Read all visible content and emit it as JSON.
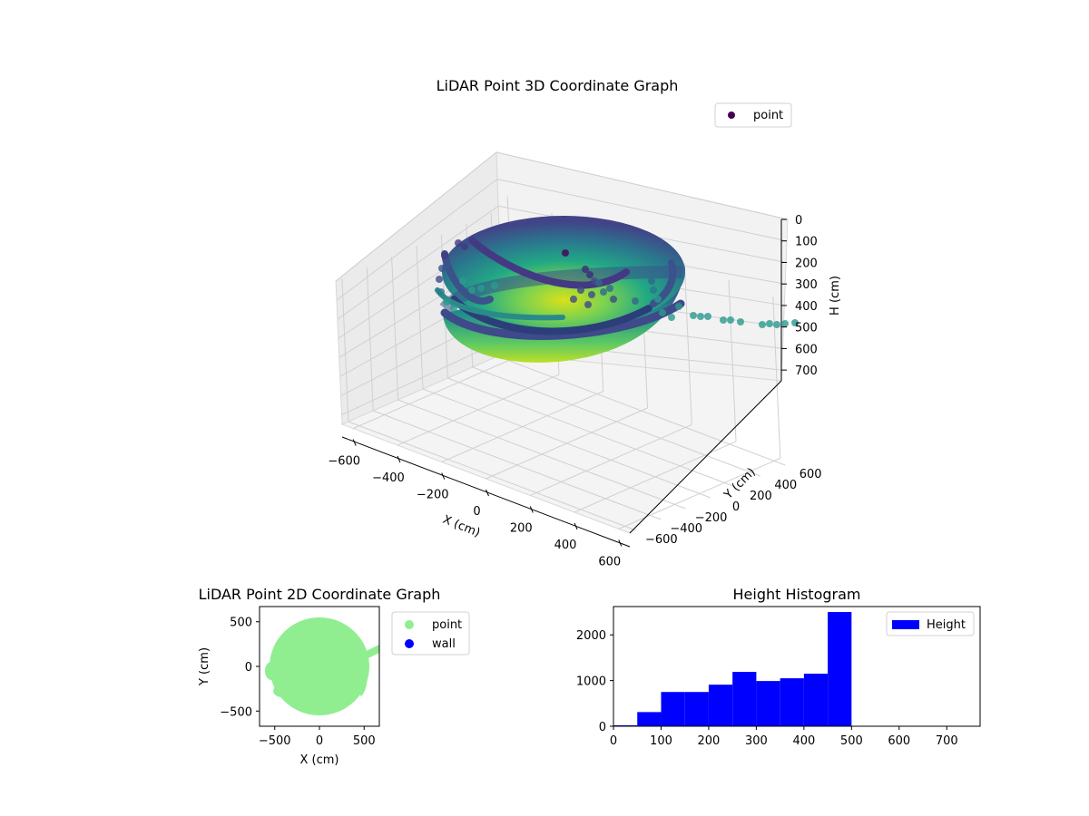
{
  "chart_data": [
    {
      "type": "scatter",
      "projection": "3d",
      "title": "LiDAR Point 3D Coordinate Graph",
      "xlabel": "X (cm)",
      "ylabel": "Y (cm)",
      "zlabel": "H (cm)",
      "xlim": [
        -650,
        650
      ],
      "ylim": [
        -650,
        650
      ],
      "zlim": [
        750,
        0
      ],
      "z_inverted": true,
      "x_ticks": [
        "−600",
        "−400",
        "−200",
        "0",
        "200",
        "400",
        "600"
      ],
      "y_ticks": [
        "−600",
        "−400",
        "−200",
        "0",
        "200",
        "400",
        "600"
      ],
      "z_ticks": [
        "0",
        "100",
        "200",
        "300",
        "400",
        "500",
        "600",
        "700"
      ],
      "x_tick_values": [
        -600,
        -400,
        -200,
        0,
        200,
        400,
        600
      ],
      "y_tick_values": [
        -600,
        -400,
        -200,
        0,
        200,
        400,
        600
      ],
      "z_tick_values": [
        0,
        100,
        200,
        300,
        400,
        500,
        600,
        700
      ],
      "colormap": "viridis",
      "legend": {
        "labels": [
          "point"
        ],
        "placement": "upper-right"
      },
      "series": [
        {
          "name": "point",
          "shape": "hemispherical bowl of points",
          "radius_cm": 550,
          "depth_cm": 500
        }
      ],
      "grid": true
    },
    {
      "type": "scatter",
      "title": "LiDAR Point 2D Coordinate Graph",
      "xlabel": "X (cm)",
      "ylabel": "Y (cm)",
      "xlim": [
        -670,
        670
      ],
      "ylim": [
        -670,
        670
      ],
      "x_ticks": [
        "−500",
        "0",
        "500"
      ],
      "y_ticks": [
        "500",
        "0",
        "−500"
      ],
      "x_tick_values": [
        -500,
        0,
        500
      ],
      "y_tick_values": [
        500,
        0,
        -500
      ],
      "series": [
        {
          "name": "point",
          "color": "#90ee90"
        },
        {
          "name": "wall",
          "color": "#0000ff"
        }
      ],
      "legend": {
        "labels": [
          "point",
          "wall"
        ],
        "placement": "outside-right"
      }
    },
    {
      "type": "bar",
      "subtype": "histogram",
      "title": "Height Histogram",
      "xlabel": "",
      "ylabel": "",
      "bin_width": 50,
      "bins_start": [
        0,
        50,
        100,
        150,
        200,
        250,
        300,
        350,
        400,
        450
      ],
      "values": [
        20,
        310,
        750,
        750,
        910,
        1190,
        990,
        1050,
        1150,
        2500
      ],
      "xlim": [
        0,
        770
      ],
      "ylim": [
        0,
        2620
      ],
      "x_ticks": [
        "0",
        "100",
        "200",
        "300",
        "400",
        "500",
        "600",
        "700"
      ],
      "x_tick_values": [
        0,
        100,
        200,
        300,
        400,
        500,
        600,
        700
      ],
      "y_ticks": [
        "0",
        "1000",
        "2000"
      ],
      "y_tick_values": [
        0,
        1000,
        2000
      ],
      "series": [
        {
          "name": "Height",
          "color": "#0000ff"
        }
      ],
      "legend": {
        "labels": [
          "Height"
        ],
        "placement": "upper-right"
      }
    }
  ]
}
